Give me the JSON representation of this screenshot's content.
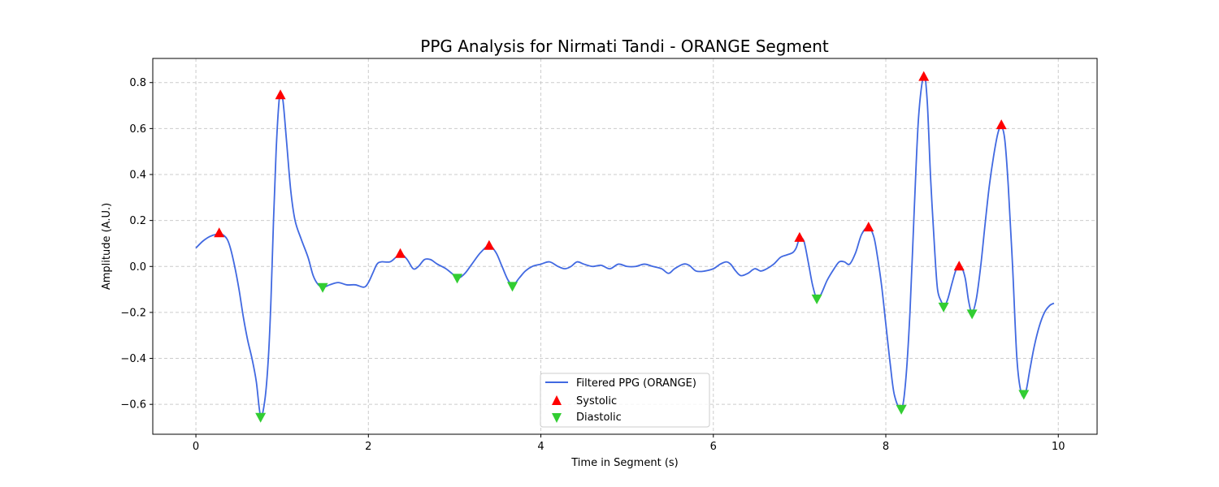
{
  "chart_data": {
    "type": "line",
    "title": "PPG Analysis for Nirmati Tandi - ORANGE Segment",
    "xlabel": "Time in Segment (s)",
    "ylabel": "Amplitude (A.U.)",
    "xlim": [
      -0.5,
      10.45
    ],
    "ylim": [
      -0.73,
      0.905
    ],
    "xticks": [
      0,
      2,
      4,
      6,
      8,
      10
    ],
    "yticks": [
      -0.6,
      -0.4,
      -0.2,
      0.0,
      0.2,
      0.4,
      0.6,
      0.8
    ],
    "xtick_labels": [
      "0",
      "2",
      "4",
      "6",
      "8",
      "10"
    ],
    "ytick_labels": [
      "−0.6",
      "−0.4",
      "−0.2",
      "0.0",
      "0.2",
      "0.4",
      "0.6",
      "0.8"
    ],
    "grid": true,
    "legend_position": "lower-center",
    "colors": {
      "line": "#4169e1",
      "systolic": "#ff0000",
      "diastolic": "#32cd32",
      "grid": "#cccccc"
    },
    "series": [
      {
        "name": "Filtered PPG (ORANGE)",
        "kind": "line",
        "points": [
          [
            0.0,
            0.08
          ],
          [
            0.08,
            0.11
          ],
          [
            0.16,
            0.13
          ],
          [
            0.24,
            0.14
          ],
          [
            0.3,
            0.14
          ],
          [
            0.36,
            0.12
          ],
          [
            0.4,
            0.08
          ],
          [
            0.45,
            0.0
          ],
          [
            0.5,
            -0.1
          ],
          [
            0.55,
            -0.22
          ],
          [
            0.6,
            -0.32
          ],
          [
            0.65,
            -0.4
          ],
          [
            0.7,
            -0.5
          ],
          [
            0.75,
            -0.65
          ],
          [
            0.8,
            -0.58
          ],
          [
            0.84,
            -0.4
          ],
          [
            0.87,
            -0.15
          ],
          [
            0.9,
            0.2
          ],
          [
            0.93,
            0.5
          ],
          [
            0.96,
            0.7
          ],
          [
            0.98,
            0.75
          ],
          [
            1.01,
            0.72
          ],
          [
            1.05,
            0.55
          ],
          [
            1.1,
            0.33
          ],
          [
            1.15,
            0.2
          ],
          [
            1.22,
            0.12
          ],
          [
            1.3,
            0.04
          ],
          [
            1.36,
            -0.04
          ],
          [
            1.42,
            -0.08
          ],
          [
            1.48,
            -0.09
          ],
          [
            1.55,
            -0.08
          ],
          [
            1.65,
            -0.07
          ],
          [
            1.75,
            -0.08
          ],
          [
            1.85,
            -0.08
          ],
          [
            1.95,
            -0.09
          ],
          [
            2.0,
            -0.07
          ],
          [
            2.05,
            -0.03
          ],
          [
            2.1,
            0.01
          ],
          [
            2.15,
            0.02
          ],
          [
            2.25,
            0.02
          ],
          [
            2.32,
            0.04
          ],
          [
            2.38,
            0.055
          ],
          [
            2.45,
            0.03
          ],
          [
            2.52,
            -0.01
          ],
          [
            2.58,
            0.0
          ],
          [
            2.65,
            0.03
          ],
          [
            2.72,
            0.03
          ],
          [
            2.8,
            0.01
          ],
          [
            2.9,
            -0.01
          ],
          [
            3.0,
            -0.04
          ],
          [
            3.05,
            -0.05
          ],
          [
            3.12,
            -0.03
          ],
          [
            3.2,
            0.01
          ],
          [
            3.3,
            0.06
          ],
          [
            3.4,
            0.09
          ],
          [
            3.48,
            0.06
          ],
          [
            3.55,
            0.0
          ],
          [
            3.62,
            -0.06
          ],
          [
            3.68,
            -0.08
          ],
          [
            3.75,
            -0.05
          ],
          [
            3.82,
            -0.02
          ],
          [
            3.9,
            0.0
          ],
          [
            4.0,
            0.01
          ],
          [
            4.1,
            0.02
          ],
          [
            4.2,
            0.0
          ],
          [
            4.28,
            -0.01
          ],
          [
            4.35,
            0.0
          ],
          [
            4.42,
            0.02
          ],
          [
            4.5,
            0.01
          ],
          [
            4.6,
            0.0
          ],
          [
            4.7,
            0.005
          ],
          [
            4.8,
            -0.01
          ],
          [
            4.9,
            0.01
          ],
          [
            5.0,
            0.0
          ],
          [
            5.1,
            0.0
          ],
          [
            5.2,
            0.01
          ],
          [
            5.3,
            0.0
          ],
          [
            5.4,
            -0.01
          ],
          [
            5.48,
            -0.03
          ],
          [
            5.55,
            -0.01
          ],
          [
            5.65,
            0.01
          ],
          [
            5.72,
            0.005
          ],
          [
            5.8,
            -0.02
          ],
          [
            5.9,
            -0.02
          ],
          [
            6.0,
            -0.01
          ],
          [
            6.08,
            0.01
          ],
          [
            6.15,
            0.02
          ],
          [
            6.2,
            0.01
          ],
          [
            6.26,
            -0.02
          ],
          [
            6.32,
            -0.04
          ],
          [
            6.4,
            -0.03
          ],
          [
            6.48,
            -0.01
          ],
          [
            6.55,
            -0.02
          ],
          [
            6.62,
            -0.01
          ],
          [
            6.7,
            0.01
          ],
          [
            6.78,
            0.04
          ],
          [
            6.85,
            0.05
          ],
          [
            6.92,
            0.06
          ],
          [
            6.96,
            0.08
          ],
          [
            7.0,
            0.12
          ],
          [
            7.05,
            0.11
          ],
          [
            7.1,
            0.02
          ],
          [
            7.15,
            -0.08
          ],
          [
            7.2,
            -0.14
          ],
          [
            7.25,
            -0.12
          ],
          [
            7.32,
            -0.06
          ],
          [
            7.4,
            -0.01
          ],
          [
            7.46,
            0.02
          ],
          [
            7.52,
            0.02
          ],
          [
            7.58,
            0.01
          ],
          [
            7.65,
            0.06
          ],
          [
            7.72,
            0.14
          ],
          [
            7.8,
            0.17
          ],
          [
            7.86,
            0.13
          ],
          [
            7.9,
            0.05
          ],
          [
            7.95,
            -0.08
          ],
          [
            8.0,
            -0.25
          ],
          [
            8.05,
            -0.42
          ],
          [
            8.1,
            -0.56
          ],
          [
            8.18,
            -0.62
          ],
          [
            8.23,
            -0.5
          ],
          [
            8.28,
            -0.2
          ],
          [
            8.33,
            0.25
          ],
          [
            8.38,
            0.65
          ],
          [
            8.44,
            0.83
          ],
          [
            8.48,
            0.72
          ],
          [
            8.52,
            0.38
          ],
          [
            8.57,
            0.05
          ],
          [
            8.6,
            -0.1
          ],
          [
            8.64,
            -0.15
          ],
          [
            8.68,
            -0.17
          ],
          [
            8.72,
            -0.14
          ],
          [
            8.77,
            -0.07
          ],
          [
            8.82,
            -0.01
          ],
          [
            8.87,
            0.0
          ],
          [
            8.92,
            -0.05
          ],
          [
            8.96,
            -0.15
          ],
          [
            9.0,
            -0.2
          ],
          [
            9.05,
            -0.14
          ],
          [
            9.1,
            0.0
          ],
          [
            9.15,
            0.18
          ],
          [
            9.2,
            0.35
          ],
          [
            9.25,
            0.48
          ],
          [
            9.3,
            0.58
          ],
          [
            9.34,
            0.61
          ],
          [
            9.38,
            0.55
          ],
          [
            9.42,
            0.35
          ],
          [
            9.47,
            0.0
          ],
          [
            9.52,
            -0.4
          ],
          [
            9.57,
            -0.55
          ],
          [
            9.62,
            -0.55
          ],
          [
            9.67,
            -0.45
          ],
          [
            9.72,
            -0.35
          ],
          [
            9.78,
            -0.26
          ],
          [
            9.84,
            -0.2
          ],
          [
            9.9,
            -0.17
          ],
          [
            9.95,
            -0.16
          ]
        ]
      },
      {
        "name": "Systolic",
        "kind": "marker-up",
        "points": [
          [
            0.27,
            0.145
          ],
          [
            0.98,
            0.745
          ],
          [
            2.37,
            0.055
          ],
          [
            3.4,
            0.09
          ],
          [
            7.0,
            0.125
          ],
          [
            7.8,
            0.17
          ],
          [
            8.44,
            0.825
          ],
          [
            8.85,
            0.0
          ],
          [
            9.34,
            0.615
          ]
        ]
      },
      {
        "name": "Diastolic",
        "kind": "marker-down",
        "points": [
          [
            0.75,
            -0.655
          ],
          [
            1.47,
            -0.09
          ],
          [
            3.03,
            -0.05
          ],
          [
            3.67,
            -0.085
          ],
          [
            7.2,
            -0.14
          ],
          [
            8.18,
            -0.62
          ],
          [
            8.67,
            -0.175
          ],
          [
            9.0,
            -0.205
          ],
          [
            9.6,
            -0.555
          ]
        ]
      }
    ]
  }
}
